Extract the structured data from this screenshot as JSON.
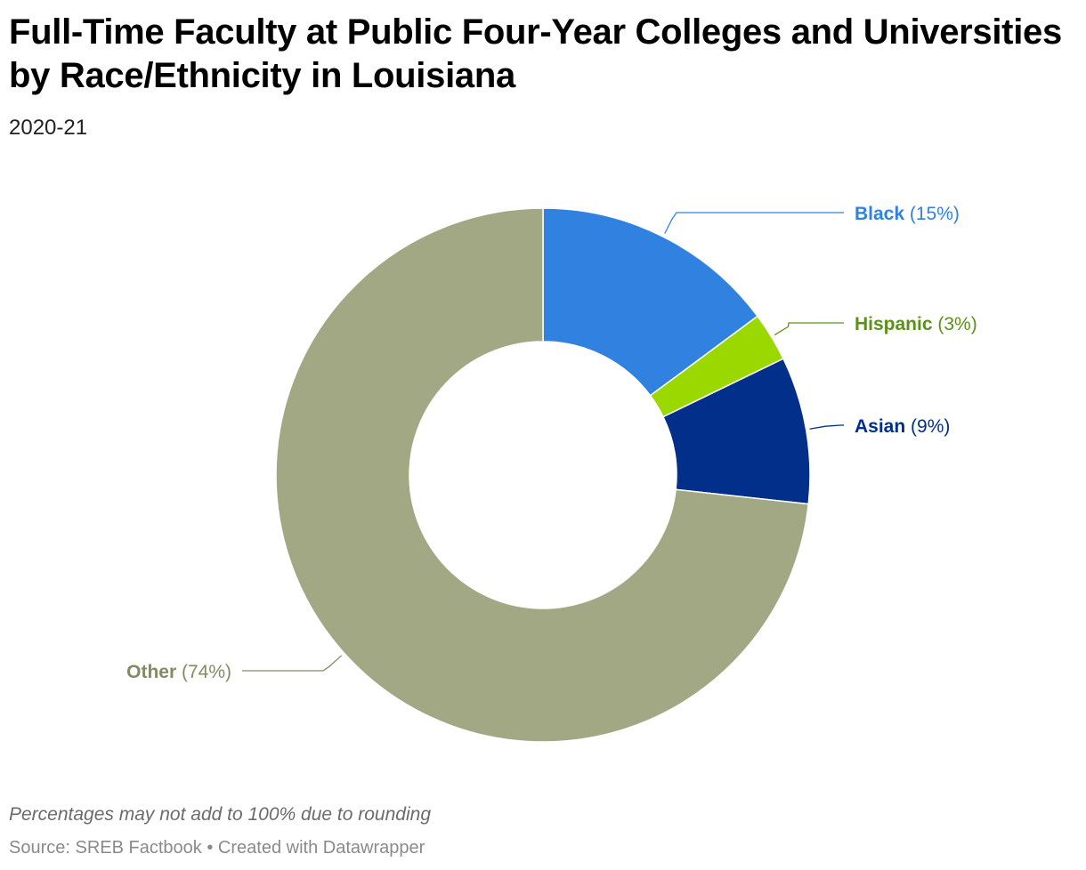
{
  "header": {
    "title": "Full-Time Faculty at Public Four-Year Colleges and Universities by Race/Ethnicity in Louisiana",
    "subtitle": "2020-21"
  },
  "footer": {
    "note": "Percentages may not add to 100% due to rounding",
    "source": "Source: SREB Factbook",
    "separator": "•",
    "credit": "Created with Datawrapper"
  },
  "chart_data": {
    "type": "pie",
    "variant": "donut",
    "title": "Full-Time Faculty at Public Four-Year Colleges and Universities by Race/Ethnicity in Louisiana",
    "subtitle": "2020-21",
    "slices": [
      {
        "name": "Black",
        "value": 15,
        "label": "(15%)",
        "color": "#3182e0",
        "text_color": "#3182e0"
      },
      {
        "name": "Hispanic",
        "value": 3,
        "label": "(3%)",
        "color": "#9bd800",
        "text_color": "#5a9216"
      },
      {
        "name": "Asian",
        "value": 9,
        "label": "(9%)",
        "color": "#022f8a",
        "text_color": "#022f8a"
      },
      {
        "name": "Other",
        "value": 74,
        "label": "(74%)",
        "color": "#a2a884",
        "text_color": "#848a62"
      }
    ]
  }
}
